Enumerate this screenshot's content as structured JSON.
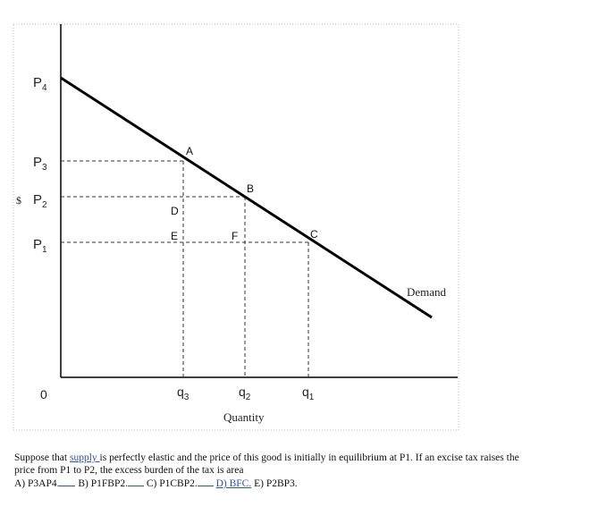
{
  "diagram": {
    "price_labels": {
      "p4": {
        "letter": "P",
        "sub": "4"
      },
      "p3": {
        "letter": "P",
        "sub": "3"
      },
      "p2": {
        "letter": "P",
        "sub": "2"
      },
      "p1": {
        "letter": "P",
        "sub": "1"
      },
      "currency": "$"
    },
    "origin_label": "0",
    "quantity_labels": {
      "q3": {
        "letter": "q",
        "sub": "3"
      },
      "q2": {
        "letter": "q",
        "sub": "2"
      },
      "q1": {
        "letter": "q",
        "sub": "1"
      }
    },
    "x_axis_label": "Quantity",
    "curve_label": "Demand",
    "point_labels": {
      "A": "A",
      "B": "B",
      "C": "C",
      "D": "D",
      "E": "E",
      "F": "F"
    },
    "colors": {
      "line": "#000000",
      "dash": "#333333",
      "frame": "#bbbbbb"
    }
  },
  "question": {
    "part1": "Suppose that ",
    "link_word": "supply ",
    "part2": "is perfectly elastic and the price of this good is initially in equilibrium at P1. If an excise tax raises the",
    "line2": "price from P1 to P2, the excess burden of the tax is area",
    "answers": {
      "a": "A) P3AP4.",
      "b": "B) P1FBP2.",
      "c": "C) P1CBP2.",
      "d": "D) BFC.",
      "e": "E) P2BP3."
    }
  }
}
